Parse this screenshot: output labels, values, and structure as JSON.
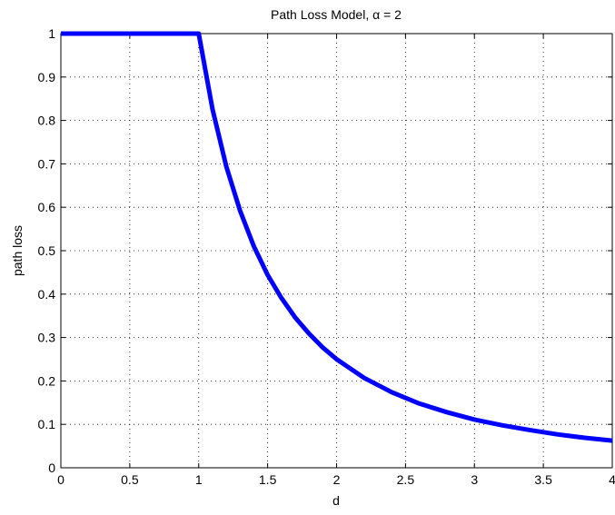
{
  "chart_data": {
    "type": "line",
    "title": "Path Loss Model, α = 2",
    "xlabel": "d",
    "ylabel": "path loss",
    "xlim": [
      0,
      4
    ],
    "ylim": [
      0,
      1
    ],
    "xticks": [
      0,
      0.5,
      1,
      1.5,
      2,
      2.5,
      3,
      3.5,
      4
    ],
    "xtick_labels": [
      "0",
      "0.5",
      "1",
      "1.5",
      "2",
      "2.5",
      "3",
      "3.5",
      "4"
    ],
    "yticks": [
      0,
      0.1,
      0.2,
      0.3,
      0.4,
      0.5,
      0.6,
      0.7,
      0.8,
      0.9,
      1
    ],
    "ytick_labels": [
      "0",
      "0.1",
      "0.2",
      "0.3",
      "0.4",
      "0.5",
      "0.6",
      "0.7",
      "0.8",
      "0.9",
      "1"
    ],
    "grid": true,
    "series": [
      {
        "color": "#0000ff",
        "x": [
          0,
          0.5,
          1.0,
          1.1,
          1.2,
          1.3,
          1.4,
          1.5,
          1.6,
          1.7,
          1.8,
          1.9,
          2.0,
          2.2,
          2.4,
          2.6,
          2.8,
          3.0,
          3.2,
          3.4,
          3.6,
          3.8,
          4.0
        ],
        "values": [
          1,
          1,
          1,
          0.826,
          0.694,
          0.592,
          0.51,
          0.444,
          0.391,
          0.346,
          0.309,
          0.277,
          0.25,
          0.207,
          0.174,
          0.148,
          0.128,
          0.111,
          0.098,
          0.087,
          0.077,
          0.069,
          0.0625
        ]
      }
    ]
  }
}
